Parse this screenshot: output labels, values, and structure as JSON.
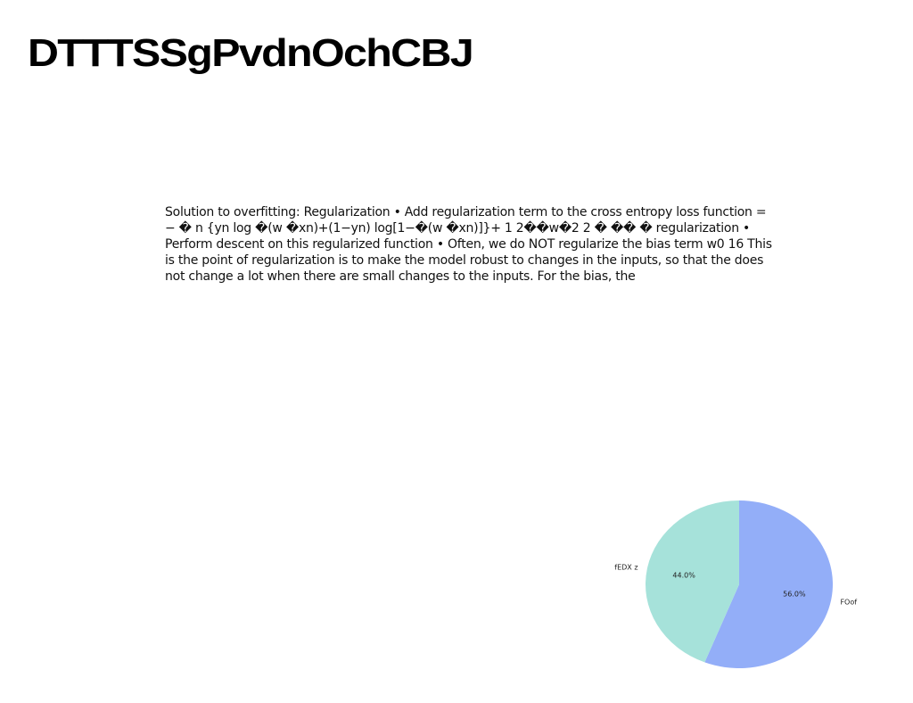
{
  "page": {
    "title": "DTTTSSgPvdnOchCBJ",
    "body_text": "Solution to overfitting: Regularization • Add regularization term to the cross entropy loss function = − � n {yn log �(w �xn)+(1−yn) log[1−�(w �xn)]}+ 1 2��w�2 2 � �� � regularization • Perform descent on this regularized function • Often, we do NOT regularize the bias term w0 16 This is the point of regularization is to make the model robust to changes in the inputs, so that the does not change a lot when there are small changes to the inputs. For the bias, the"
  },
  "chart_data": {
    "type": "pie",
    "labels": [
      "FOof",
      "fEDX z"
    ],
    "values": [
      56.0,
      44.0
    ],
    "value_labels": [
      "56.0%",
      "44.0%"
    ],
    "colors": [
      "#93aef8",
      "#a6e2da"
    ],
    "start_angle_deg": 90,
    "direction": "clockwise"
  }
}
